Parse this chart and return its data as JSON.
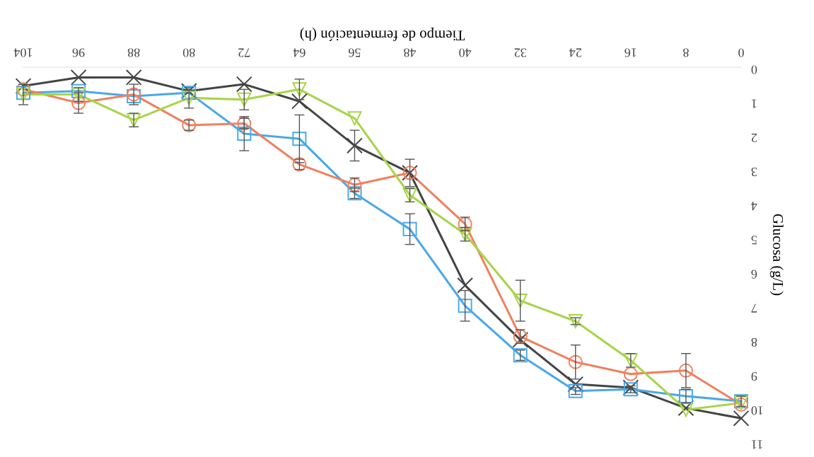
{
  "chart_data": {
    "type": "line",
    "xlabel": "Tiempo de fermentación (h)",
    "ylabel": "Glucosa (g/L)",
    "x": [
      0,
      8,
      16,
      24,
      32,
      40,
      48,
      56,
      64,
      72,
      80,
      88,
      96,
      104
    ],
    "xlim": [
      104,
      0
    ],
    "ylim": [
      11,
      0
    ],
    "xticks": [
      0,
      8,
      16,
      24,
      32,
      40,
      48,
      56,
      64,
      72,
      80,
      88,
      96,
      104
    ],
    "yticks": [
      0,
      1,
      2,
      3,
      4,
      5,
      6,
      7,
      8,
      9,
      10,
      11
    ],
    "grid": false,
    "legend": false,
    "line_style": "solid",
    "series": [
      {
        "color": "#444444",
        "marker": "cross",
        "values": [
          10.3,
          10.0,
          9.4,
          9.3,
          8.0,
          6.4,
          3.1,
          2.3,
          1.0,
          0.5,
          0.7,
          0.3,
          0.3,
          0.55
        ],
        "errors": [
          null,
          null,
          null,
          null,
          null,
          null,
          0.4,
          0.45,
          null,
          null,
          null,
          null,
          null,
          null
        ]
      },
      {
        "color": "#4aa8e8",
        "marker": "square",
        "values": [
          9.8,
          9.65,
          9.45,
          9.5,
          8.45,
          7.0,
          4.75,
          3.7,
          2.1,
          1.95,
          0.75,
          0.85,
          0.7,
          0.75
        ],
        "errors": [
          0.15,
          0.2,
          0.1,
          0.1,
          0.15,
          0.45,
          0.45,
          0.15,
          0.7,
          0.5,
          null,
          null,
          null,
          null
        ]
      },
      {
        "color": "#f08060",
        "marker": "circle",
        "values": [
          9.9,
          8.9,
          9.0,
          8.65,
          7.9,
          4.6,
          3.1,
          3.45,
          2.85,
          1.65,
          1.7,
          0.8,
          1.05,
          0.65
        ],
        "errors": [
          null,
          0.5,
          null,
          0.5,
          0.2,
          0.2,
          null,
          0.2,
          0.15,
          0.15,
          0.15,
          0.3,
          0.3,
          null
        ]
      },
      {
        "color": "#a8d44a",
        "marker": "triangle",
        "values": [
          9.85,
          10.05,
          8.6,
          7.45,
          6.85,
          4.9,
          3.75,
          1.5,
          0.65,
          0.95,
          0.9,
          1.55,
          0.8,
          0.8
        ],
        "errors": [
          null,
          null,
          0.2,
          0.1,
          0.6,
          0.2,
          0.2,
          null,
          0.3,
          0.3,
          0.3,
          0.2,
          0.2,
          0.3
        ]
      }
    ]
  }
}
